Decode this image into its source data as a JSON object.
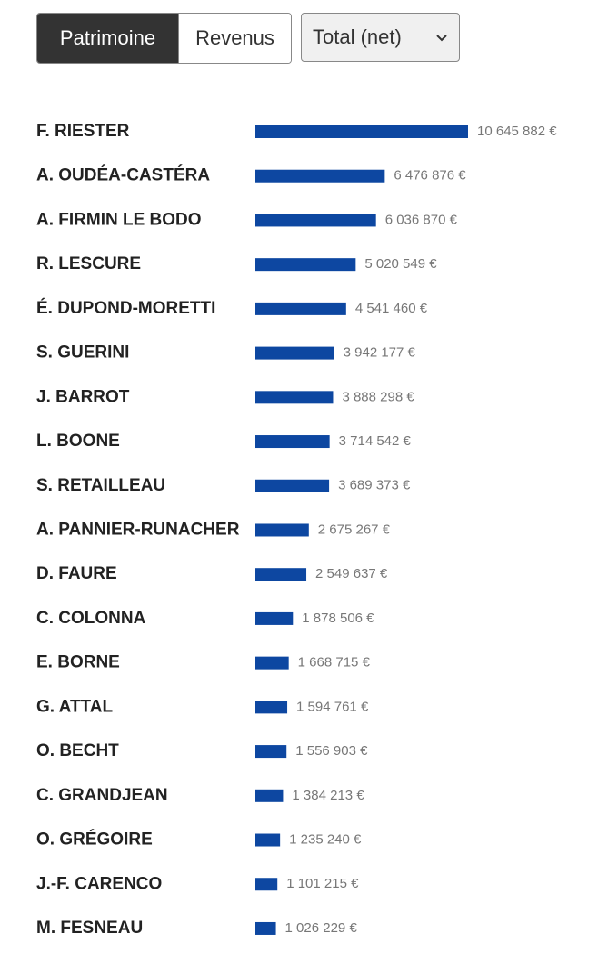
{
  "controls": {
    "tabs": [
      "Patrimoine",
      "Revenus"
    ],
    "select": "Total (net)"
  },
  "chart_data": {
    "type": "hbar",
    "color": "#0d47a1",
    "categories": [
      "F. RIESTER",
      "A. OUDÉA-CASTÉRA",
      "A. FIRMIN LE BODO",
      "R. LESCURE",
      "É. DUPOND-MORETTI",
      "S. GUERINI",
      "J. BARROT",
      "L. BOONE",
      "S. RETAILLEAU",
      "A. PANNIER-RUNACHER",
      "D. FAURE",
      "C. COLONNA",
      "E. BORNE",
      "G. ATTAL",
      "O. BECHT",
      "C. GRANDJEAN",
      "O. GRÉGOIRE",
      "J.-F. CARENCO",
      "M. FESNEAU"
    ],
    "values": [
      10645882,
      6476876,
      6036870,
      5020549,
      4541460,
      3942177,
      3888298,
      3714542,
      3689373,
      2675267,
      2549637,
      1878506,
      1668715,
      1594761,
      1556903,
      1384213,
      1235240,
      1101215,
      1026229
    ],
    "value_labels": [
      "10 645 882 €",
      "6 476 876 €",
      "6 036 870 €",
      "5 020 549 €",
      "4 541 460 €",
      "3 942 177 €",
      "3 888 298 €",
      "3 714 542 €",
      "3 689 373 €",
      "2 675 267 €",
      "2 549 637 €",
      "1 878 506 €",
      "1 668 715 €",
      "1 594 761 €",
      "1 556 903 €",
      "1 384 213 €",
      "1 235 240 €",
      "1 101 215 €",
      "1 026 229 €"
    ]
  }
}
